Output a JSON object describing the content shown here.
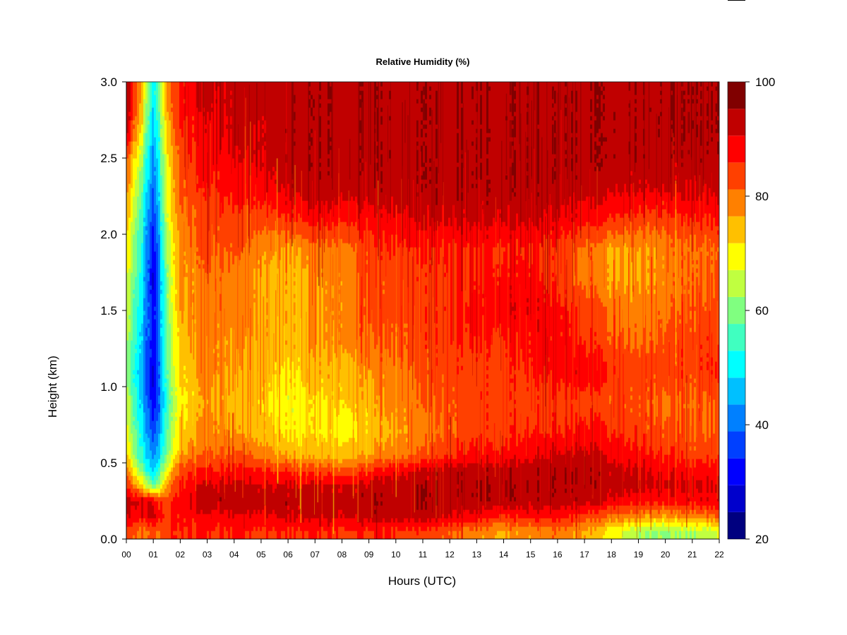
{
  "chart_data": {
    "type": "heatmap",
    "title": "Relative Humidity (%)",
    "xlabel": "Hours (UTC)",
    "ylabel": "Height (km)",
    "x_ticks": [
      "00",
      "01",
      "02",
      "03",
      "04",
      "05",
      "06",
      "07",
      "08",
      "09",
      "10",
      "11",
      "12",
      "13",
      "14",
      "15",
      "16",
      "17",
      "18",
      "19",
      "20",
      "21",
      "22"
    ],
    "xlim": [
      0,
      22
    ],
    "y_ticks": [
      "0.0",
      "0.5",
      "1.0",
      "1.5",
      "2.0",
      "2.5",
      "3.0"
    ],
    "ylim": [
      0,
      3.0
    ],
    "colorbar": {
      "range": [
        20,
        100
      ],
      "levels": [
        20,
        25,
        30,
        35,
        40,
        45,
        50,
        55,
        60,
        65,
        70,
        75,
        80,
        85,
        90,
        95,
        100
      ],
      "tick_labels": [
        "20",
        "40",
        "60",
        "80",
        "100"
      ],
      "colors": [
        "#00007f",
        "#0000cc",
        "#0000ff",
        "#0040ff",
        "#0080ff",
        "#00c0ff",
        "#00ffff",
        "#40ffc0",
        "#80ff80",
        "#c0ff40",
        "#ffff00",
        "#ffc000",
        "#ff8000",
        "#ff4000",
        "#ff0000",
        "#c00000",
        "#800000"
      ]
    },
    "height_levels_km": [
      0.05,
      0.15,
      0.25,
      0.35,
      0.45,
      0.55,
      0.7,
      0.9,
      1.1,
      1.3,
      1.5,
      1.7,
      1.9,
      2.1,
      2.3,
      2.5,
      2.7,
      2.9
    ],
    "hours_utc": [
      0,
      0.5,
      1,
      1.5,
      2,
      3,
      4,
      5,
      6,
      7,
      8,
      9,
      10,
      11,
      12,
      13,
      14,
      15,
      16,
      17,
      18,
      19,
      20,
      21,
      22
    ],
    "rh_percent": [
      [
        88,
        85,
        84,
        88,
        90,
        90,
        90,
        90,
        90,
        90,
        90,
        90,
        90,
        88,
        86,
        82,
        80,
        82,
        84,
        80,
        72,
        66,
        64,
        66,
        68
      ],
      [
        95,
        93,
        96,
        88,
        92,
        94,
        94,
        95,
        96,
        96,
        96,
        97,
        98,
        97,
        95,
        93,
        90,
        92,
        92,
        88,
        84,
        82,
        80,
        82,
        84
      ],
      [
        96,
        97,
        94,
        86,
        93,
        98,
        98,
        98,
        98,
        98,
        98,
        99,
        99,
        99,
        99,
        99,
        99,
        98,
        98,
        98,
        94,
        92,
        92,
        93,
        93
      ],
      [
        90,
        80,
        60,
        80,
        92,
        96,
        96,
        96,
        96,
        96,
        96,
        97,
        98,
        99,
        99,
        99,
        99,
        99,
        99,
        99,
        98,
        97,
        96,
        95,
        95
      ],
      [
        84,
        66,
        48,
        70,
        88,
        92,
        92,
        92,
        90,
        88,
        88,
        90,
        94,
        96,
        98,
        98,
        98,
        98,
        99,
        99,
        97,
        96,
        94,
        93,
        92
      ],
      [
        76,
        58,
        42,
        62,
        80,
        86,
        86,
        84,
        80,
        78,
        78,
        80,
        84,
        86,
        90,
        92,
        92,
        94,
        96,
        97,
        94,
        92,
        90,
        88,
        88
      ],
      [
        72,
        56,
        36,
        58,
        76,
        82,
        80,
        78,
        74,
        74,
        74,
        76,
        80,
        82,
        86,
        88,
        88,
        90,
        90,
        92,
        90,
        88,
        86,
        85,
        85
      ],
      [
        68,
        52,
        30,
        56,
        74,
        80,
        78,
        76,
        72,
        74,
        76,
        78,
        82,
        84,
        86,
        88,
        88,
        88,
        88,
        88,
        86,
        86,
        84,
        84,
        85
      ],
      [
        64,
        50,
        28,
        58,
        76,
        82,
        80,
        78,
        74,
        78,
        78,
        80,
        84,
        86,
        88,
        88,
        88,
        90,
        92,
        94,
        90,
        88,
        88,
        88,
        90
      ],
      [
        66,
        52,
        30,
        60,
        78,
        82,
        80,
        80,
        78,
        80,
        82,
        84,
        86,
        88,
        90,
        90,
        90,
        92,
        92,
        90,
        86,
        84,
        86,
        88,
        88
      ],
      [
        68,
        54,
        30,
        62,
        80,
        84,
        82,
        80,
        78,
        80,
        82,
        86,
        88,
        88,
        90,
        92,
        94,
        94,
        92,
        88,
        84,
        82,
        84,
        86,
        86
      ],
      [
        70,
        56,
        28,
        62,
        80,
        84,
        82,
        80,
        78,
        80,
        82,
        86,
        88,
        88,
        90,
        90,
        92,
        92,
        88,
        84,
        80,
        80,
        82,
        84,
        84
      ],
      [
        74,
        58,
        30,
        64,
        82,
        86,
        86,
        82,
        80,
        82,
        84,
        88,
        90,
        90,
        90,
        90,
        90,
        90,
        88,
        84,
        80,
        80,
        82,
        84,
        84
      ],
      [
        78,
        60,
        34,
        68,
        84,
        88,
        88,
        88,
        90,
        92,
        92,
        92,
        94,
        96,
        96,
        96,
        96,
        96,
        94,
        92,
        90,
        88,
        88,
        90,
        90
      ],
      [
        82,
        64,
        38,
        70,
        86,
        90,
        92,
        94,
        96,
        98,
        98,
        98,
        99,
        99,
        99,
        99,
        99,
        99,
        98,
        97,
        96,
        96,
        96,
        96,
        96
      ],
      [
        86,
        70,
        42,
        72,
        88,
        92,
        94,
        96,
        98,
        99,
        99,
        99,
        99,
        99,
        99,
        99,
        99,
        99,
        99,
        99,
        99,
        99,
        98,
        98,
        98
      ],
      [
        98,
        78,
        46,
        76,
        90,
        94,
        96,
        96,
        98,
        99,
        99,
        99,
        99,
        99,
        99,
        99,
        99,
        99,
        99,
        99,
        99,
        99,
        99,
        99,
        99
      ],
      [
        98,
        84,
        50,
        80,
        92,
        96,
        96,
        98,
        98,
        99,
        99,
        99,
        99,
        99,
        99,
        99,
        99,
        99,
        99,
        99,
        99,
        99,
        99,
        99,
        99
      ]
    ],
    "grid": false,
    "legend": "colorbar right"
  }
}
